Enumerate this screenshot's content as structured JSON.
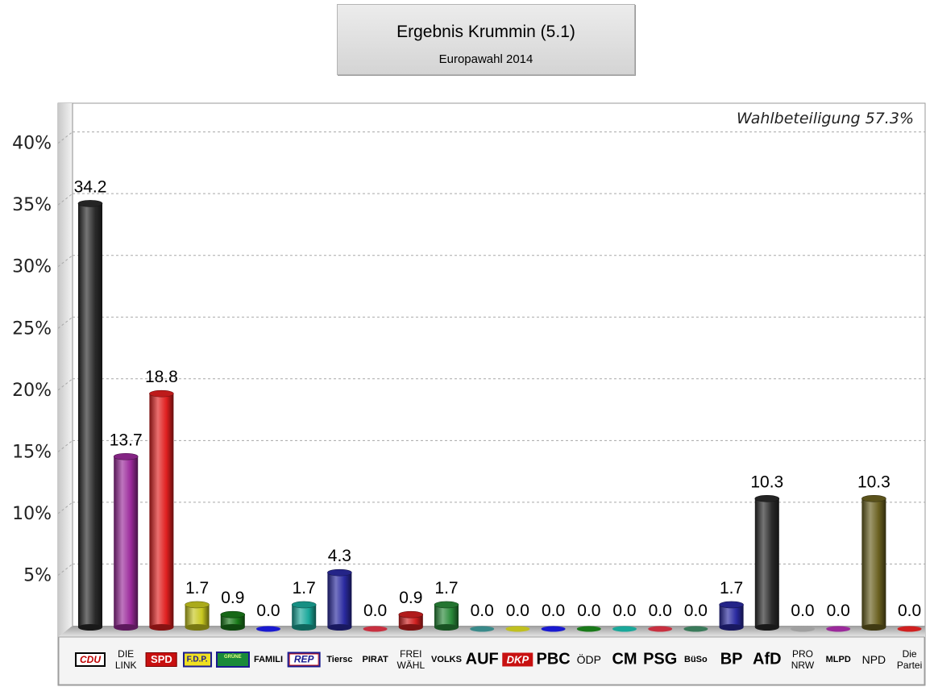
{
  "header": {
    "title": "Ergebnis Krummin (5.1)",
    "subtitle": "Europawahl 2014"
  },
  "turnout_label": "Wahlbeteiligung 57.3%",
  "chart_data": {
    "type": "bar",
    "title": "Ergebnis Krummin (5.1)",
    "subtitle": "Europawahl 2014",
    "ylim": [
      0,
      42
    ],
    "yticks": [
      "5%",
      "10%",
      "15%",
      "20%",
      "25%",
      "30%",
      "35%",
      "40%"
    ],
    "ytick_values": [
      5,
      10,
      15,
      20,
      25,
      30,
      35,
      40
    ],
    "grid": true,
    "categories": [
      "CDU",
      "DIE LINK",
      "SPD",
      "F.D.P.",
      "GRÜNE",
      "FAMILI",
      "REP",
      "Tiersc",
      "PIRAT",
      "FREI WÄHL",
      "VOLKS",
      "AUF",
      "DKP",
      "PBC",
      "ÖDP",
      "CM",
      "PSG",
      "BüSo",
      "BP",
      "AfD",
      "PRO NRW",
      "MLPD",
      "NPD",
      "Die Partei"
    ],
    "values": [
      34.2,
      13.7,
      18.8,
      1.7,
      0.9,
      0.0,
      1.7,
      4.3,
      0.0,
      0.9,
      1.7,
      0.0,
      0.0,
      0.0,
      0.0,
      0.0,
      0.0,
      0.0,
      1.7,
      10.3,
      0.0,
      0.0,
      10.3,
      0.0
    ],
    "value_labels": [
      "34.2",
      "13.7",
      "18.8",
      "1.7",
      "0.9",
      "0.0",
      "1.7",
      "4.3",
      "0.0",
      "0.9",
      "1.7",
      "0.0",
      "0.0",
      "0.0",
      "0.0",
      "0.0",
      "0.0",
      "0.0",
      "1.7",
      "10.3",
      "0.0",
      "0.0",
      "10.3",
      "0.0"
    ],
    "colors": [
      "#2a2a2a",
      "#9b2a9b",
      "#e02020",
      "#c8c820",
      "#1a7a1a",
      "#1a1ad0",
      "#1aa89a",
      "#2a2aa0",
      "#c83040",
      "#d02020",
      "#2a8a3a",
      "#3a8a8a",
      "#c0c020",
      "#1a1ad0",
      "#1a7a1a",
      "#1aa89a",
      "#c83040",
      "#3a7a5a",
      "#2a2aa0",
      "#2a2a2a",
      "#a0a0a0",
      "#9b2a9b",
      "#6a6020",
      "#d02020"
    ]
  },
  "party_labels": [
    {
      "text": "CDU",
      "style": "logo-cdu"
    },
    {
      "text": "DIE LINK",
      "style": "two-line"
    },
    {
      "text": "SPD",
      "style": "logo-spd"
    },
    {
      "text": "F.D.P.",
      "style": "logo-fdp"
    },
    {
      "text": "GRÜNE",
      "style": "logo-gruene"
    },
    {
      "text": "FAMILI",
      "style": "small"
    },
    {
      "text": "REP",
      "style": "logo-rep"
    },
    {
      "text": "Tiersc",
      "style": "small"
    },
    {
      "text": "PIRAT",
      "style": "small"
    },
    {
      "text": "FREI WÄHL",
      "style": "two-line"
    },
    {
      "text": "VOLKS",
      "style": "small"
    },
    {
      "text": "AUF",
      "style": "big"
    },
    {
      "text": "DKP",
      "style": "logo-dkp"
    },
    {
      "text": "PBC",
      "style": "big"
    },
    {
      "text": "ÖDP",
      "style": "medium"
    },
    {
      "text": "CM",
      "style": "big"
    },
    {
      "text": "PSG",
      "style": "big"
    },
    {
      "text": "BüSo",
      "style": "small"
    },
    {
      "text": "BP",
      "style": "big"
    },
    {
      "text": "AfD",
      "style": "big"
    },
    {
      "text": "PRO NRW",
      "style": "two-line"
    },
    {
      "text": "MLPD",
      "style": "small"
    },
    {
      "text": "NPD",
      "style": "medium"
    },
    {
      "text": "Die Partei",
      "style": "two-line"
    }
  ]
}
